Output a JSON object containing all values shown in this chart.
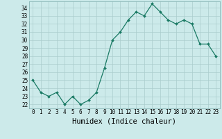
{
  "xlabel": "Humidex (Indice chaleur)",
  "x": [
    0,
    1,
    2,
    3,
    4,
    5,
    6,
    7,
    8,
    9,
    10,
    11,
    12,
    13,
    14,
    15,
    16,
    17,
    18,
    19,
    20,
    21,
    22,
    23
  ],
  "y": [
    25,
    23.5,
    23,
    23.5,
    22,
    23,
    22,
    22.5,
    23.5,
    26.5,
    30,
    31,
    32.5,
    33.5,
    33,
    34.5,
    33.5,
    32.5,
    32,
    32.5,
    32,
    29.5,
    29.5,
    28
  ],
  "line_color": "#1a7a64",
  "marker": "D",
  "marker_size": 2.0,
  "bg_color": "#cceaea",
  "grid_color": "#aacccc",
  "yticks": [
    22,
    23,
    24,
    25,
    26,
    27,
    28,
    29,
    30,
    31,
    32,
    33,
    34
  ],
  "xticks": [
    0,
    1,
    2,
    3,
    4,
    5,
    6,
    7,
    8,
    9,
    10,
    11,
    12,
    13,
    14,
    15,
    16,
    17,
    18,
    19,
    20,
    21,
    22,
    23
  ],
  "tick_fontsize": 5.5,
  "xlabel_fontsize": 7.5,
  "ylim_min": 21.5,
  "ylim_max": 34.8,
  "xlim_min": -0.5,
  "xlim_max": 23.5
}
